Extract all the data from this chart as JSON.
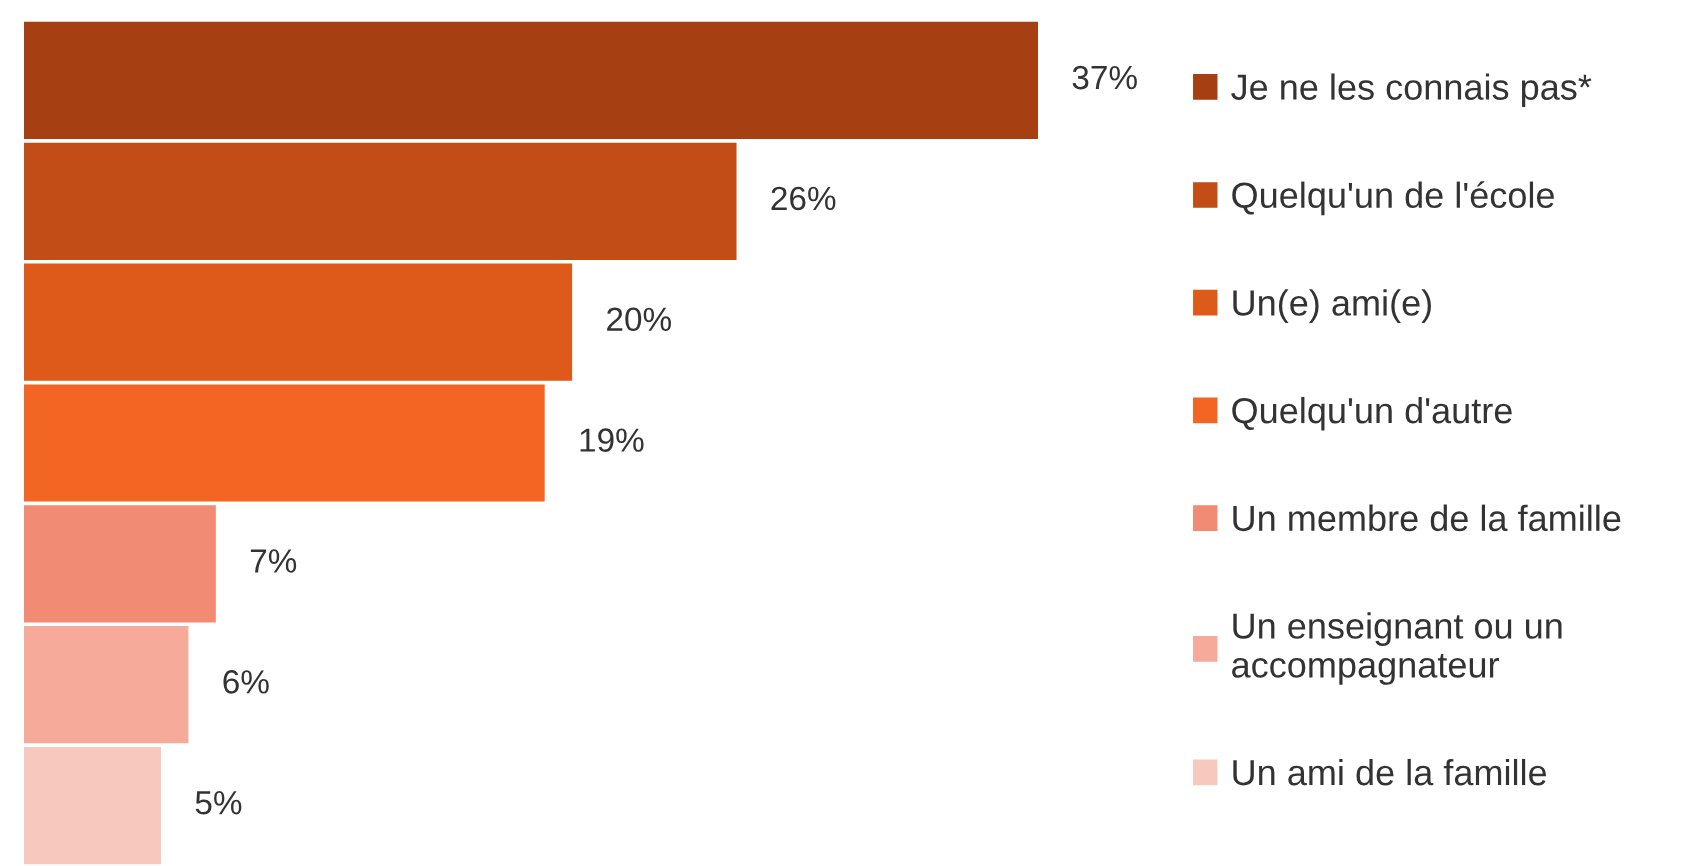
{
  "chart_data": {
    "type": "bar",
    "orientation": "horizontal",
    "stacked": true,
    "categories": [
      null,
      null,
      null,
      null,
      null,
      null,
      null
    ],
    "series": [
      {
        "name": "Je ne les connais pas*",
        "color": "#a63f12",
        "values": [
          37,
          null,
          null,
          null,
          null,
          null,
          null
        ],
        "value_labels": [
          "37%",
          null,
          null,
          null,
          null,
          null,
          null
        ]
      },
      {
        "name": "Quelqu'un de l'école",
        "color": "#c24d16",
        "values": [
          null,
          26,
          null,
          null,
          null,
          null,
          null
        ],
        "value_labels": [
          null,
          "26%",
          null,
          null,
          null,
          null,
          null
        ]
      },
      {
        "name": "Un(e) ami(e)",
        "color": "#de5a1b",
        "values": [
          null,
          null,
          20,
          null,
          null,
          null,
          null
        ],
        "value_labels": [
          null,
          null,
          "20%",
          null,
          null,
          null,
          null
        ]
      },
      {
        "name": "Quelqu'un d'autre",
        "color": "#f26522",
        "values": [
          null,
          null,
          null,
          19,
          null,
          null,
          null
        ],
        "value_labels": [
          null,
          null,
          null,
          "19%",
          null,
          null,
          null
        ]
      },
      {
        "name": "Un membre de la famille",
        "color": "#f28b73",
        "values": [
          null,
          null,
          null,
          null,
          7,
          null,
          null
        ],
        "value_labels": [
          null,
          null,
          null,
          null,
          "7%",
          null,
          null
        ]
      },
      {
        "name": "Un enseignant ou un accompagnateur",
        "color": "#f5aa9a",
        "values": [
          null,
          null,
          null,
          null,
          null,
          6,
          null
        ],
        "value_labels": [
          null,
          null,
          null,
          null,
          null,
          "6%",
          null
        ]
      },
      {
        "name": "Un ami de la famille",
        "color": "#f7c8bc",
        "values": [
          null,
          null,
          null,
          null,
          null,
          null,
          5
        ],
        "value_labels": [
          null,
          null,
          null,
          null,
          null,
          null,
          "5%"
        ]
      }
    ],
    "legend": "right"
  }
}
